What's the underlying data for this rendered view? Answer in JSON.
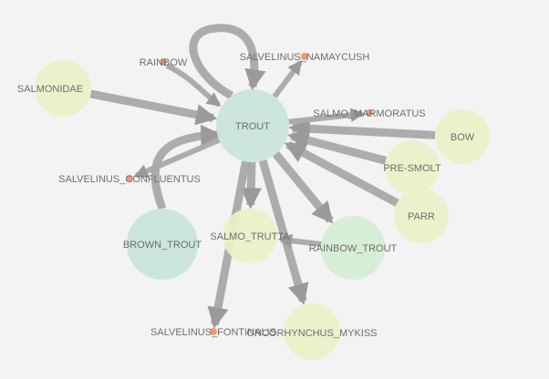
{
  "graph": {
    "colors": {
      "background": "#f3f3f3",
      "edge": "#a8a8a8",
      "arrowhead": "#9a9a9a",
      "label": "#6e6e6e",
      "node_teal": "#c9e4dd",
      "node_mint": "#d4eed4",
      "node_lime": "#e9f2c8",
      "node_orange": "#f09a72"
    },
    "nodes": [
      {
        "id": "trout",
        "label": "TROUT",
        "color": "#c9e4dd",
        "size": "large"
      },
      {
        "id": "brown_trout",
        "label": "BROWN_TROUT",
        "color": "#c9e4dd",
        "size": "large"
      },
      {
        "id": "rainbow_trout",
        "label": "RAINBOW_TROUT",
        "color": "#d4eed4",
        "size": "large"
      },
      {
        "id": "oncorhynchus_mykiss",
        "label": "ONCORHYNCHUS_MYKISS",
        "color": "#e9f2c8",
        "size": "medium"
      },
      {
        "id": "salmo_trutta",
        "label": "SALMO_TRUTTA",
        "color": "#e9f2c8",
        "size": "medium"
      },
      {
        "id": "salmonidae",
        "label": "SALMONIDAE",
        "color": "#e9f2c8",
        "size": "medium"
      },
      {
        "id": "bow",
        "label": "BOW",
        "color": "#e9f2c8",
        "size": "medium"
      },
      {
        "id": "pre_smolt",
        "label": "PRE-SMOLT",
        "color": "#e9f2c8",
        "size": "medium"
      },
      {
        "id": "parr",
        "label": "PARR",
        "color": "#e9f2c8",
        "size": "medium"
      },
      {
        "id": "rainbow",
        "label": "RAINBOW",
        "color": "#f09a72",
        "size": "dot"
      },
      {
        "id": "salvelinus_namaycush",
        "label": "SALVELINUS_NAMAYCUSH",
        "color": "#f09a72",
        "size": "dot"
      },
      {
        "id": "salmo_marmoratus",
        "label": "SALMO_MARMORATUS",
        "color": "#f09a72",
        "size": "dot"
      },
      {
        "id": "salvelinus_confluentus",
        "label": "SALVELINUS_CONFLUENTUS",
        "color": "#f09a72",
        "size": "dot"
      },
      {
        "id": "salvelinus_fontinalis",
        "label": "SALVELINUS_FONTINALIS",
        "color": "#f09a72",
        "size": "dot"
      }
    ],
    "edges": [
      {
        "source": "salmonidae",
        "target": "trout",
        "weight": "heavy"
      },
      {
        "source": "bow",
        "target": "trout",
        "weight": "heavy"
      },
      {
        "source": "pre_smolt",
        "target": "trout",
        "weight": "heavy"
      },
      {
        "source": "parr",
        "target": "trout",
        "weight": "heavy"
      },
      {
        "source": "brown_trout",
        "target": "trout",
        "weight": "heavy"
      },
      {
        "source": "rainbow",
        "target": "trout",
        "weight": "medium"
      },
      {
        "source": "trout",
        "target": "trout",
        "weight": "heavy"
      },
      {
        "source": "trout",
        "target": "salvelinus_namaycush",
        "weight": "medium"
      },
      {
        "source": "trout",
        "target": "salmo_marmoratus",
        "weight": "medium"
      },
      {
        "source": "trout",
        "target": "salvelinus_confluentus",
        "weight": "medium"
      },
      {
        "source": "trout",
        "target": "rainbow_trout",
        "weight": "heavy"
      },
      {
        "source": "trout",
        "target": "oncorhynchus_mykiss",
        "weight": "heavy"
      },
      {
        "source": "trout",
        "target": "salmo_trutta",
        "weight": "heavy"
      },
      {
        "source": "trout",
        "target": "salvelinus_fontinalis",
        "weight": "heavy"
      },
      {
        "source": "rainbow_trout",
        "target": "salmo_trutta",
        "weight": "medium"
      }
    ]
  }
}
